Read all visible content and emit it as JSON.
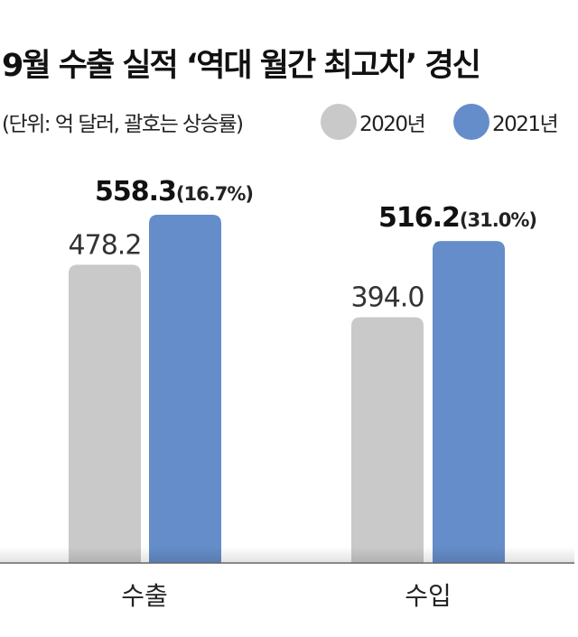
{
  "chart_data": {
    "type": "bar",
    "title": "9월 수출 실적 ‘역대 월간 최고치’ 경신",
    "subtitle": "(단위: 억 달러, 괄호는 상승률)",
    "categories": [
      "수출",
      "수입"
    ],
    "series": [
      {
        "name": "2020년",
        "color": "#c9c9c9",
        "values": [
          478.2,
          394.0
        ],
        "labels": [
          "478.2",
          "394.0"
        ]
      },
      {
        "name": "2021년",
        "color": "#648dc9",
        "values": [
          558.3,
          516.2
        ],
        "labels": [
          "558.3",
          "516.2"
        ],
        "growth": [
          "(16.7%)",
          "(31.0%)"
        ]
      }
    ],
    "ylim": [
      0,
      558.3
    ],
    "grid": false,
    "legend": "top-right"
  }
}
